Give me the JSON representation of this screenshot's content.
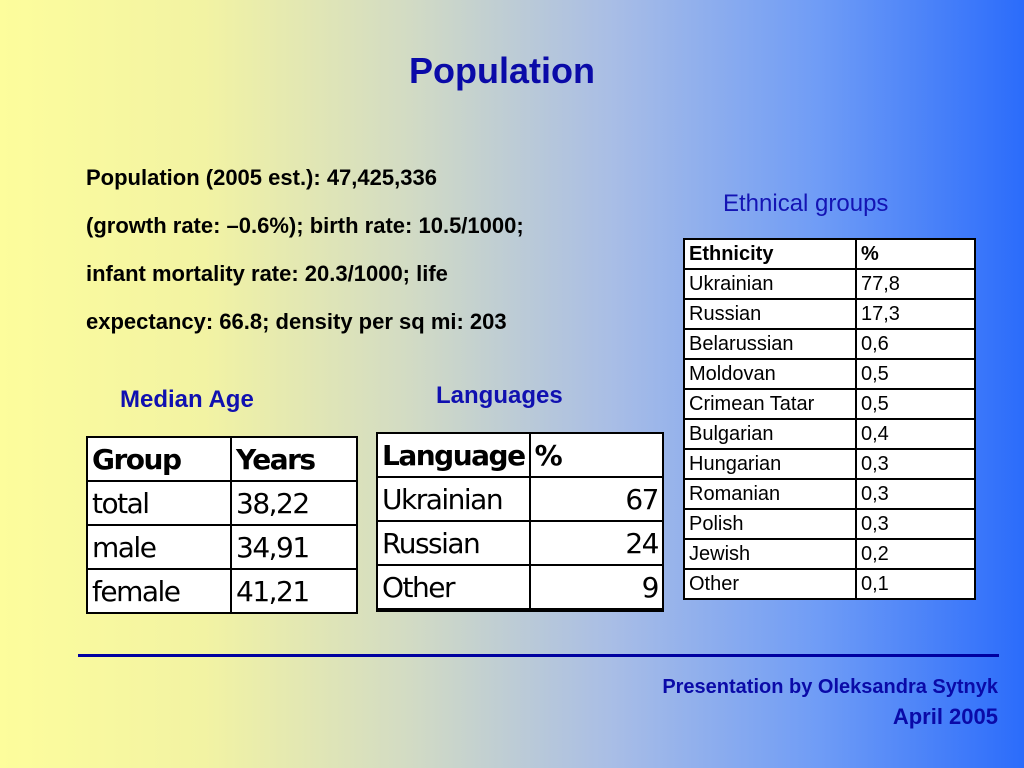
{
  "title": "Population",
  "stats_lines": [
    "Population (2005 est.): 47,425,336",
    "(growth rate: –0.6%); birth rate: 10.5/1000;",
    "infant mortality rate: 20.3/1000; life",
    "expectancy: 66.8; density per sq mi: 203"
  ],
  "median_age": {
    "heading": "Median Age",
    "headers": [
      "Group",
      "Years"
    ],
    "rows": [
      [
        "total",
        "38,22"
      ],
      [
        "male",
        "34,91"
      ],
      [
        "female",
        "41,21"
      ]
    ]
  },
  "languages": {
    "heading": "Languages",
    "headers": [
      "Language",
      "%"
    ],
    "rows": [
      [
        "Ukrainian",
        "67"
      ],
      [
        "Russian",
        "24"
      ],
      [
        "Other",
        "9"
      ]
    ]
  },
  "ethnical_groups": {
    "heading": "Ethnical groups",
    "headers": [
      "Ethnicity",
      "%"
    ],
    "rows": [
      [
        "Ukrainian",
        "77,8"
      ],
      [
        "Russian",
        "17,3"
      ],
      [
        "Belarussian",
        "0,6"
      ],
      [
        "Moldovan",
        "0,5"
      ],
      [
        "Crimean Tatar",
        "0,5"
      ],
      [
        "Bulgarian",
        "0,4"
      ],
      [
        "Hungarian",
        "0,3"
      ],
      [
        "Romanian",
        "0,3"
      ],
      [
        "Polish",
        "0,3"
      ],
      [
        "Jewish",
        "0,2"
      ],
      [
        "Other",
        "0,1"
      ]
    ]
  },
  "footer": {
    "author": "Presentation by Oleksandra Sytnyk",
    "date": "April 2005"
  }
}
